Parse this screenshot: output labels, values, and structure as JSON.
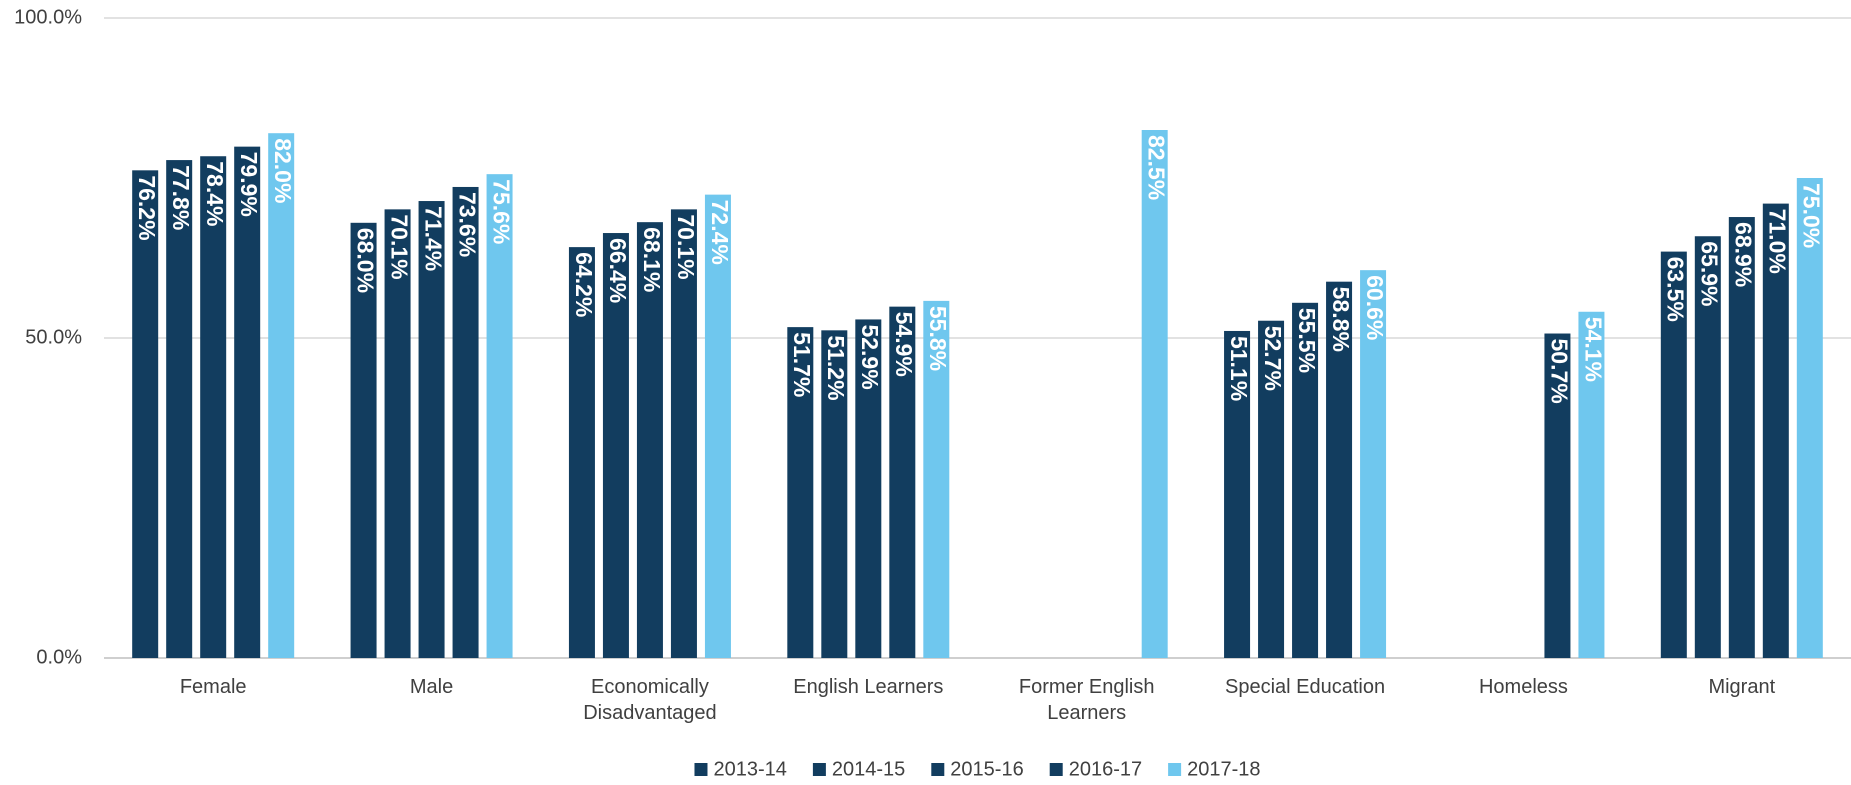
{
  "chart_data": {
    "type": "bar",
    "categories": [
      "Female",
      "Male",
      "Economically Disadvantaged",
      "English Learners",
      "Former English Learners",
      "Special Education",
      "Homeless",
      "Migrant"
    ],
    "series": [
      {
        "name": "2013-14",
        "color": "#123d5f",
        "values": [
          76.2,
          68.0,
          64.2,
          51.7,
          null,
          51.1,
          null,
          63.5
        ],
        "value_labels": [
          "76.2%",
          "68.0%",
          "64.2%",
          "51.7%",
          null,
          "51.1%",
          null,
          "63.5%"
        ]
      },
      {
        "name": "2014-15",
        "color": "#123d5f",
        "values": [
          77.8,
          70.1,
          66.4,
          51.2,
          null,
          52.7,
          null,
          65.9
        ],
        "value_labels": [
          "77.8%",
          "70.1%",
          "66.4%",
          "51.2%",
          null,
          "52.7%",
          null,
          "65.9%"
        ]
      },
      {
        "name": "2015-16",
        "color": "#123d5f",
        "values": [
          78.4,
          71.4,
          68.1,
          52.9,
          null,
          55.5,
          null,
          68.9
        ],
        "value_labels": [
          "78.4%",
          "71.4%",
          "68.1%",
          "52.9%",
          null,
          "55.5%",
          null,
          "68.9%"
        ]
      },
      {
        "name": "2016-17",
        "color": "#123d5f",
        "values": [
          79.9,
          73.6,
          70.1,
          54.9,
          null,
          58.8,
          50.7,
          71.0
        ],
        "value_labels": [
          "79.9%",
          "73.6%",
          "70.1%",
          "54.9%",
          null,
          "58.8%",
          "50.7%",
          "71.0%"
        ]
      },
      {
        "name": "2017-18",
        "color": "#6fc7ee",
        "values": [
          82.0,
          75.6,
          72.4,
          55.8,
          82.5,
          60.6,
          54.1,
          75.0
        ],
        "value_labels": [
          "82.0%",
          "75.6%",
          "72.4%",
          "55.8%",
          "82.5%",
          "60.6%",
          "54.1%",
          "75.0%"
        ]
      }
    ],
    "ylim": [
      0,
      100
    ],
    "yticks": [
      {
        "value": 0,
        "label": "0.0%"
      },
      {
        "value": 50,
        "label": "50.0%"
      },
      {
        "value": 100,
        "label": "100.0%"
      }
    ],
    "grid": true,
    "legend": "bottom"
  }
}
